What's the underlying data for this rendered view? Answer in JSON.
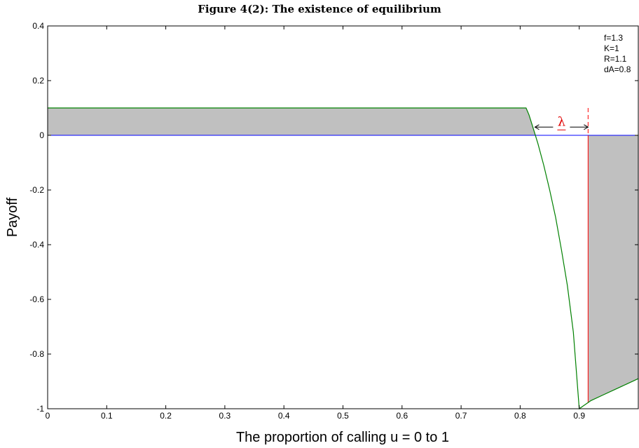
{
  "chart_data": {
    "type": "area",
    "title": "Figure 4(2): The existence of equilibrium",
    "xlabel": "The proportion of calling u = 0 to 1",
    "ylabel": "Payoff",
    "xlim": [
      0,
      1
    ],
    "ylim": [
      -1,
      0.4
    ],
    "x_ticks": [
      0,
      0.1,
      0.2,
      0.3,
      0.4,
      0.5,
      0.6,
      0.7,
      0.8,
      0.9
    ],
    "x_tick_labels": [
      "0",
      "0.1",
      "0.2",
      "0.3",
      "0.4",
      "0.5",
      "0.6",
      "0.7",
      "0.8",
      "0.9"
    ],
    "y_ticks": [
      0.4,
      0.2,
      0,
      -0.2,
      -0.4,
      -0.6,
      -0.8,
      -1
    ],
    "y_tick_labels": [
      "0.4",
      "0.2",
      "0",
      "-0.2",
      "-0.4",
      "-0.6",
      "-0.8",
      "-1"
    ],
    "grid": false,
    "params": [
      "f=1.3",
      "K=1",
      "R=1.1",
      "dA=0.8"
    ],
    "series": [
      {
        "color": "#008000",
        "x": [
          0,
          0.81,
          0.815,
          0.82,
          0.83,
          0.84,
          0.85,
          0.86,
          0.87,
          0.88,
          0.89,
          0.9,
          0.91,
          0.92,
          0.94,
          0.96,
          0.98,
          1.0
        ],
        "y": [
          0.1,
          0.1,
          0.075,
          0.04,
          -0.03,
          -0.11,
          -0.2,
          -0.3,
          -0.42,
          -0.55,
          -0.72,
          -1.0,
          -0.985,
          -0.97,
          -0.95,
          -0.93,
          -0.91,
          -0.89
        ]
      },
      {
        "color": "#0000ff",
        "x": [
          0,
          1
        ],
        "y": [
          0,
          0
        ]
      }
    ],
    "shaded_regions": [
      {
        "fill": "#c0c0c0",
        "x_from": 0,
        "x_to": 0.825,
        "between": "curve-and-zero"
      },
      {
        "fill": "#c0c0c0",
        "x_from": 0.915,
        "x_to": 1.0,
        "between": "curve-and-zero"
      }
    ],
    "vertical_line": {
      "x": 0.915,
      "color": "#ff0000"
    },
    "annotation": {
      "text": "λ",
      "color": "#e00000",
      "arrow_from": 0.825,
      "arrow_to": 0.915,
      "y": 0.03
    }
  }
}
